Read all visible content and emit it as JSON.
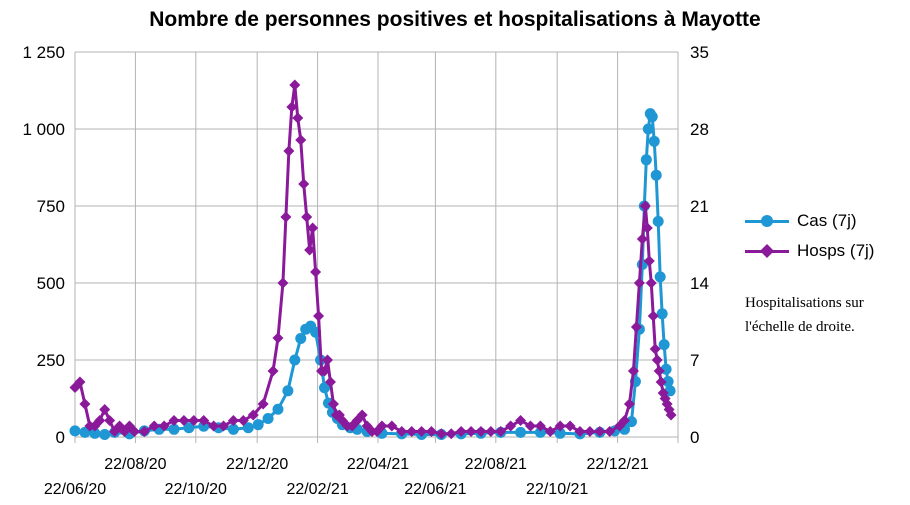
{
  "chart_data": {
    "type": "line",
    "title": "Nombre de personnes positives et hospitalisations à Mayotte",
    "xlabel": "",
    "ylabel": "",
    "y_left": {
      "ylim": [
        0,
        1250
      ],
      "ticks": [
        0,
        250,
        500,
        750,
        1000,
        1250
      ],
      "tick_labels": [
        "0",
        "250",
        "500",
        "750",
        "1 000",
        "1 250"
      ]
    },
    "y_right": {
      "ylim": [
        0,
        35
      ],
      "ticks": [
        0,
        7,
        14,
        21,
        28,
        35
      ],
      "tick_labels": [
        "0",
        "7",
        "14",
        "21",
        "28",
        "35"
      ]
    },
    "x_tick_labels_upper": [
      "22/08/20",
      "22/12/20",
      "22/04/21",
      "22/08/21",
      "22/12/21"
    ],
    "x_tick_labels_lower": [
      "22/06/20",
      "22/10/20",
      "22/02/21",
      "22/06/21",
      "22/10/21"
    ],
    "x_tick_days": [
      0,
      61,
      122,
      184,
      245,
      306,
      364,
      425,
      487,
      548,
      609
    ],
    "x_range_days": [
      0,
      609
    ],
    "series": [
      {
        "name": "Cas (7j)",
        "axis": "left",
        "color": "#1f97d4",
        "marker": "circle",
        "x": [
          0,
          10,
          20,
          30,
          40,
          55,
          70,
          85,
          100,
          115,
          130,
          145,
          160,
          175,
          185,
          195,
          205,
          215,
          222,
          228,
          233,
          238,
          243,
          248,
          252,
          256,
          260,
          265,
          270,
          278,
          285,
          295,
          310,
          330,
          350,
          370,
          390,
          410,
          430,
          450,
          470,
          490,
          510,
          530,
          545,
          555,
          562,
          566,
          570,
          573,
          575,
          577,
          579,
          581,
          583,
          585,
          587,
          589,
          591,
          593,
          595,
          597,
          599,
          601
        ],
        "values": [
          20,
          15,
          12,
          8,
          15,
          10,
          20,
          25,
          25,
          30,
          35,
          30,
          25,
          30,
          40,
          60,
          90,
          150,
          250,
          320,
          350,
          360,
          340,
          250,
          160,
          110,
          80,
          60,
          40,
          30,
          25,
          18,
          12,
          10,
          8,
          8,
          10,
          12,
          15,
          15,
          15,
          12,
          10,
          15,
          20,
          25,
          50,
          180,
          350,
          560,
          750,
          900,
          1000,
          1050,
          1040,
          960,
          850,
          700,
          520,
          400,
          300,
          220,
          180,
          150
        ]
      },
      {
        "name": "Hosps (7j)",
        "axis": "right",
        "color": "#8b1a9b",
        "marker": "diamond",
        "x": [
          0,
          5,
          10,
          15,
          20,
          25,
          30,
          35,
          40,
          45,
          50,
          55,
          60,
          70,
          80,
          90,
          100,
          110,
          120,
          130,
          140,
          150,
          160,
          170,
          180,
          190,
          200,
          205,
          210,
          213,
          216,
          219,
          222,
          225,
          228,
          231,
          234,
          237,
          240,
          243,
          246,
          249,
          252,
          255,
          258,
          261,
          264,
          267,
          270,
          275,
          280,
          285,
          290,
          295,
          300,
          305,
          310,
          320,
          330,
          340,
          350,
          360,
          370,
          380,
          390,
          400,
          410,
          420,
          430,
          440,
          450,
          460,
          470,
          480,
          490,
          500,
          510,
          520,
          530,
          540,
          550,
          555,
          560,
          564,
          567,
          570,
          573,
          576,
          578,
          580,
          582,
          584,
          586,
          588,
          590,
          592,
          594,
          596,
          598,
          600,
          602
        ],
        "values": [
          4.5,
          5,
          3,
          1,
          1,
          1.5,
          2.5,
          1.5,
          0.5,
          1,
          0.5,
          1,
          0.5,
          0.5,
          1,
          1,
          1.5,
          1.5,
          1.5,
          1.5,
          1,
          1,
          1.5,
          1.5,
          2,
          3,
          6,
          9,
          14,
          20,
          26,
          30,
          32,
          29,
          27,
          23,
          20,
          17,
          19,
          15,
          11,
          6,
          6,
          7,
          5,
          3,
          2,
          2,
          1.5,
          1,
          1,
          1.5,
          2,
          1,
          0.5,
          0.5,
          1,
          1,
          0.5,
          0.5,
          0.5,
          0.5,
          0.3,
          0.3,
          0.5,
          0.5,
          0.5,
          0.5,
          0.5,
          1,
          1.5,
          1,
          1,
          0.5,
          1,
          1,
          0.5,
          0.5,
          0.5,
          0.5,
          1,
          1.5,
          3,
          6,
          10,
          14,
          18,
          21,
          19,
          16,
          14,
          11,
          8,
          7,
          6,
          5,
          4,
          3.5,
          3,
          2.5,
          2
        ]
      }
    ],
    "legend_position": "right"
  },
  "note": "Hospitalisations sur l'échelle de droite."
}
